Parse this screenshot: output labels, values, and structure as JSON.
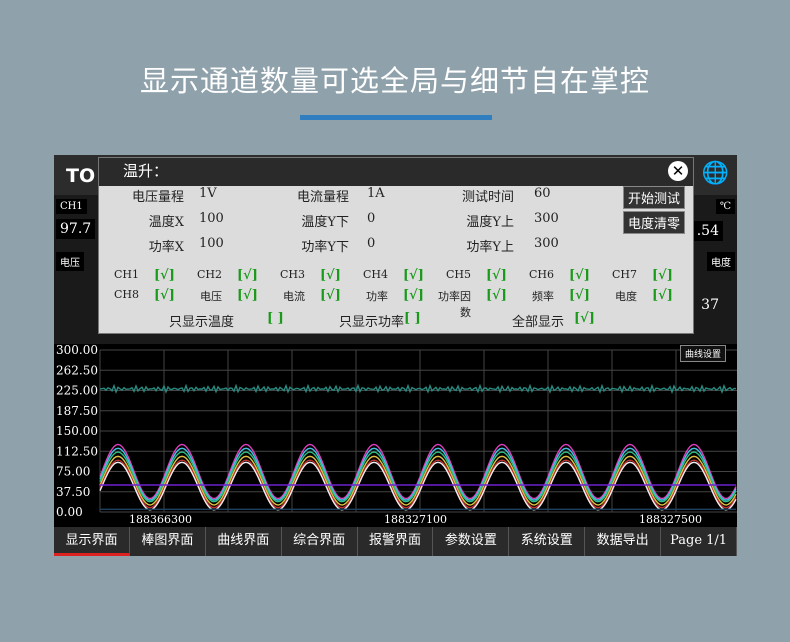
{
  "headline": "显示通道数量可选全局与细节自在掌控",
  "screen": {
    "logo": "TO",
    "ch1_label": "CH1",
    "ch1_value": "97.7",
    "voltage_label": "电压",
    "unit_c": "℃",
    "right_value": ".54",
    "right_label": "电度",
    "right_value2": "37"
  },
  "dialog": {
    "title": "温升：",
    "params": [
      {
        "label": "电压量程",
        "value": "1V"
      },
      {
        "label": "电流量程",
        "value": "1A"
      },
      {
        "label": "测试时间",
        "value": "60"
      },
      {
        "label": "温度X",
        "value": "100"
      },
      {
        "label": "温度Y下",
        "value": "0"
      },
      {
        "label": "温度Y上",
        "value": "300"
      },
      {
        "label": "功率X",
        "value": "100"
      },
      {
        "label": "功率Y下",
        "value": "0"
      },
      {
        "label": "功率Y上",
        "value": "300"
      }
    ],
    "start_button": "开始测试",
    "clear_button": "电度清零",
    "checks": [
      {
        "label": "CH1",
        "mark": "[√]"
      },
      {
        "label": "CH2",
        "mark": "[√]"
      },
      {
        "label": "CH3",
        "mark": "[√]"
      },
      {
        "label": "CH4",
        "mark": "[√]"
      },
      {
        "label": "CH5",
        "mark": "[√]"
      },
      {
        "label": "CH6",
        "mark": "[√]"
      },
      {
        "label": "CH7",
        "mark": "[√]"
      },
      {
        "label": "CH8",
        "mark": "[√]"
      },
      {
        "label": "电压",
        "mark": "[√]"
      },
      {
        "label": "电流",
        "mark": "[√]"
      },
      {
        "label": "功率",
        "mark": "[√]"
      },
      {
        "label": "功率因数",
        "mark": "[√]"
      },
      {
        "label": "频率",
        "mark": "[√]"
      },
      {
        "label": "电度",
        "mark": "[√]"
      }
    ],
    "options": [
      {
        "label": "只显示温度",
        "mark": "[ ]"
      },
      {
        "label": "只显示功率",
        "mark": "[ ]"
      },
      {
        "label": "全部显示",
        "mark": "[√]"
      }
    ]
  },
  "chart_data": {
    "type": "line",
    "yticks": [
      "300.00",
      "262.50",
      "225.00",
      "187.50",
      "150.00",
      "112.50",
      "75.00",
      "37.50",
      "0.00"
    ],
    "ylim": [
      0,
      300
    ],
    "xticks": [
      "188366300",
      "188327100",
      "188327500"
    ],
    "settings_button": "曲线设置",
    "grid": true,
    "series": [
      {
        "color": "#e040c0",
        "amp": 50,
        "mid": 75
      },
      {
        "color": "#40c0e0",
        "amp": 48,
        "mid": 70
      },
      {
        "color": "#30c080",
        "amp": 46,
        "mid": 65
      },
      {
        "color": "#e0c040",
        "amp": 45,
        "mid": 58
      },
      {
        "color": "#c03030",
        "amp": 44,
        "mid": 52
      },
      {
        "color": "#f0f0f0",
        "amp": 44,
        "mid": 48
      },
      {
        "color": "#2a8a80",
        "flat": 228
      },
      {
        "color": "#7020d0",
        "flat": 50
      },
      {
        "color": "#204060",
        "flat": 5
      }
    ]
  },
  "nav": [
    "显示界面",
    "棒图界面",
    "曲线界面",
    "综合界面",
    "报警界面",
    "参数设置",
    "系统设置",
    "数据导出",
    "Page 1/1"
  ]
}
